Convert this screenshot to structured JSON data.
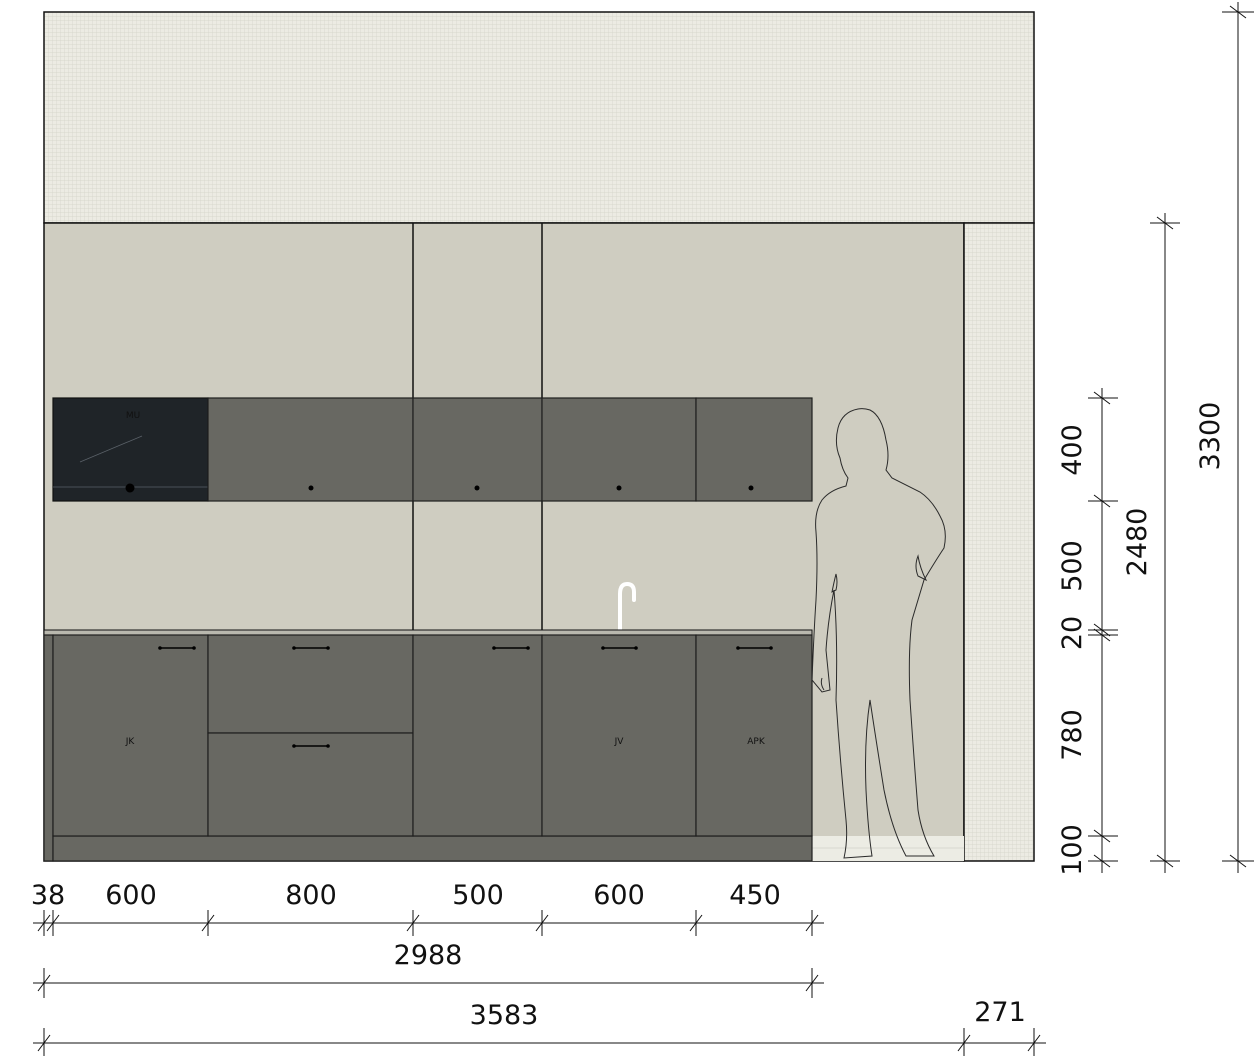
{
  "colors": {
    "ceiling": "#e9e8df",
    "wall": "#cfcdc1",
    "cabinet": "#686862",
    "cabinet_stroke": "#1e1e1e",
    "microwave": "#1f2428",
    "floor_strip": "#ecece4",
    "line": "#111111"
  },
  "labels": {
    "microwave": "MU",
    "base_cabinet_1": "JK",
    "base_cabinet_4": "JV",
    "base_cabinet_5": "APK"
  },
  "dimensions": {
    "horizontal_segments": [
      "38",
      "600",
      "800",
      "500",
      "600",
      "450"
    ],
    "cabinet_total": "2988",
    "wall_width": "3583",
    "right_column": "271",
    "vertical_segments": [
      "400",
      "500",
      "20",
      "780",
      "100"
    ],
    "vertical_subtotal": "2480",
    "room_height": "3300"
  }
}
